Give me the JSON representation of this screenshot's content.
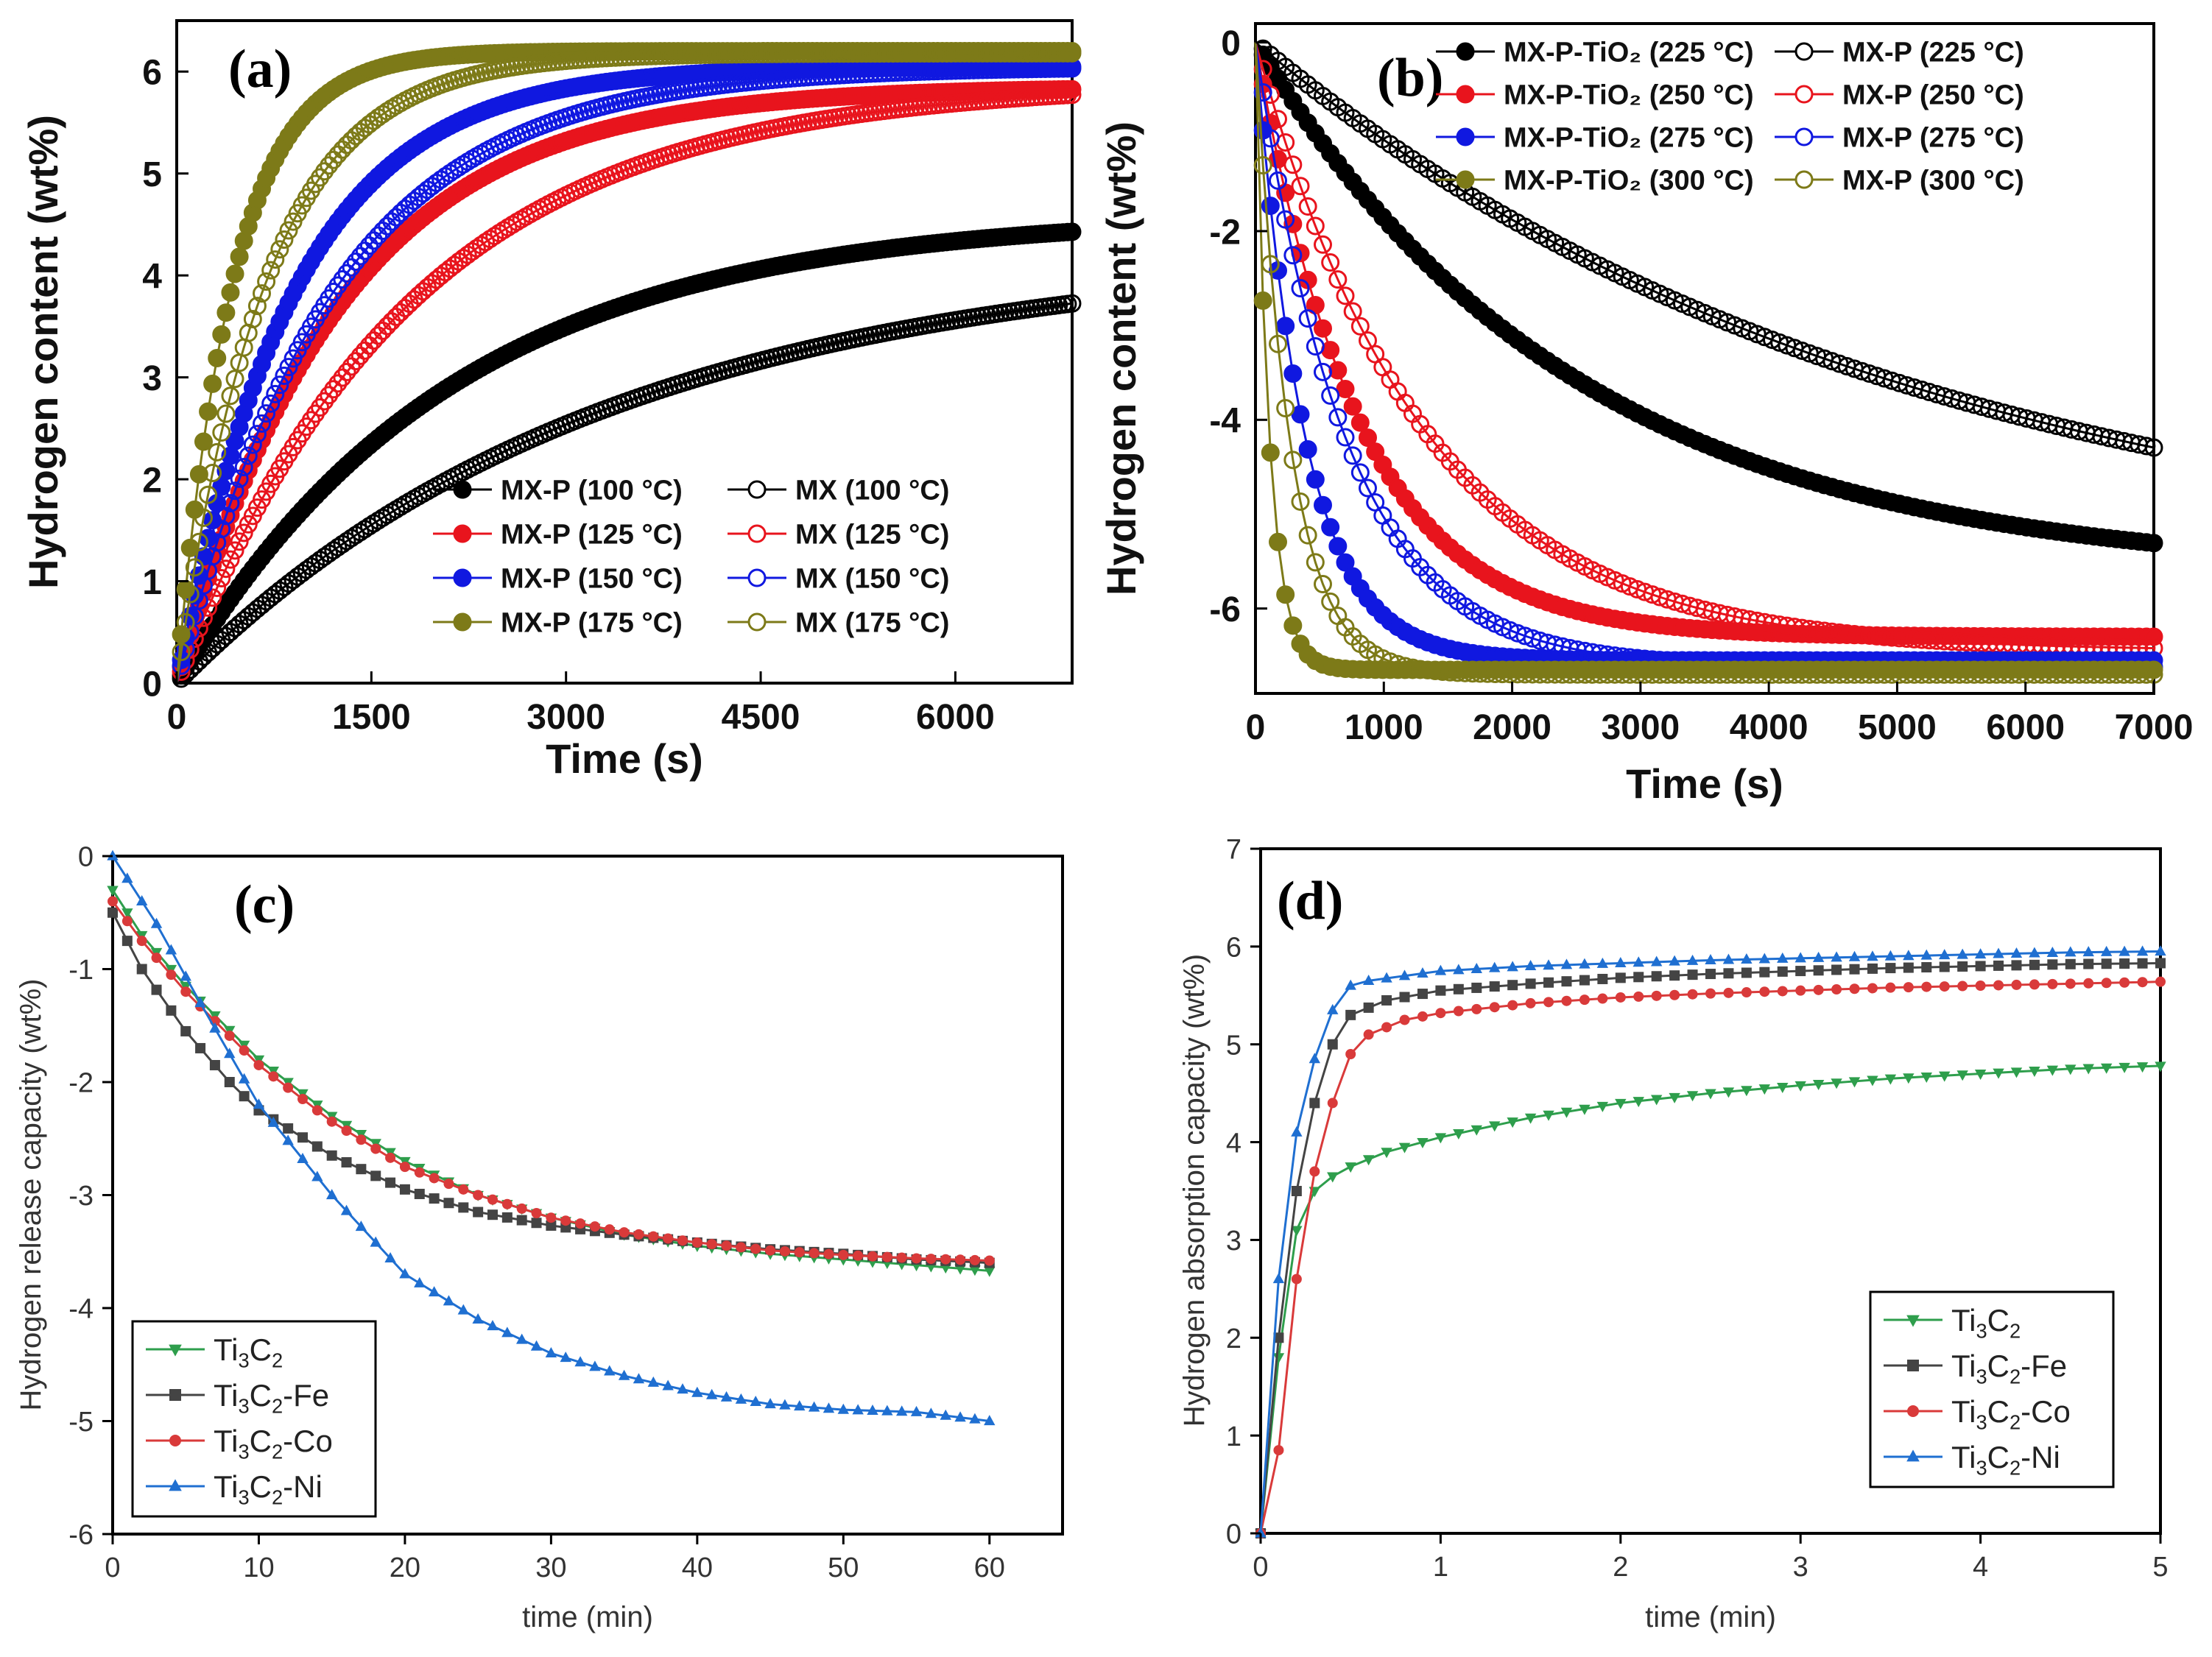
{
  "chart_data": [
    {
      "id": "a",
      "type": "scatter",
      "panel_label": "(a)",
      "xlabel": "Time (s)",
      "ylabel": "Hydrogen content (wt%)",
      "xlim": [
        0,
        6900
      ],
      "ylim": [
        0,
        6.5
      ],
      "xticks": [
        0,
        1500,
        3000,
        4500,
        6000
      ],
      "xtick_labels": [
        "0",
        "1500",
        "3000",
        "4500",
        "6000"
      ],
      "yticks": [
        0,
        1,
        2,
        3,
        4,
        5,
        6
      ],
      "ytick_labels": [
        "0",
        "1",
        "2",
        "3",
        "4",
        "5",
        "6"
      ],
      "legend_position": "lower-right",
      "series": [
        {
          "name": "MX-P (100 °C)",
          "label": "MX-P (100 °C)",
          "color": "#000000",
          "filled": true,
          "final": 4.6,
          "tau": 2100
        },
        {
          "name": "MX (100 °C)",
          "label": "MX (100 °C)",
          "color": "#000000",
          "filled": false,
          "final": 4.25,
          "tau": 3300
        },
        {
          "name": "MX-P (125 °C)",
          "label": "MX-P (125 °C)",
          "color": "#e8141d",
          "filled": true,
          "final": 5.85,
          "tau": 1250
        },
        {
          "name": "MX (125 °C)",
          "label": "MX (125 °C)",
          "color": "#e8141d",
          "filled": false,
          "final": 5.9,
          "tau": 1800
        },
        {
          "name": "MX-P (150 °C)",
          "label": "MX-P (150 °C)",
          "color": "#1018e0",
          "filled": true,
          "final": 6.05,
          "tau": 900
        },
        {
          "name": "MX (150 °C)",
          "label": "MX (150 °C)",
          "color": "#1018e0",
          "filled": false,
          "final": 6.05,
          "tau": 1200
        },
        {
          "name": "MX-P (175 °C)",
          "label": "MX-P (175 °C)",
          "color": "#7d7a18",
          "filled": true,
          "final": 6.2,
          "tau": 430
        },
        {
          "name": "MX (175 °C)",
          "label": "MX (175 °C)",
          "color": "#7d7a18",
          "filled": false,
          "final": 6.18,
          "tau": 680
        }
      ]
    },
    {
      "id": "b",
      "type": "scatter",
      "panel_label": "(b)",
      "xlabel": "Time (s)",
      "ylabel": "Hydrogen content (wt%)",
      "xlim": [
        0,
        7000
      ],
      "ylim": [
        -6.9,
        0.2
      ],
      "xticks": [
        0,
        1000,
        2000,
        3000,
        4000,
        5000,
        6000,
        7000
      ],
      "xtick_labels": [
        "0",
        "1000",
        "2000",
        "3000",
        "4000",
        "5000",
        "6000",
        "7000"
      ],
      "yticks": [
        0,
        -2,
        -4,
        -6
      ],
      "ytick_labels": [
        "0",
        "-2",
        "-4",
        "-6"
      ],
      "legend_position": "top-right",
      "series": [
        {
          "name": "MX-P-TiO2 (225 °C)",
          "label": "MX-P-TiO₂ (225 °C)",
          "color": "#000000",
          "filled": true,
          "final": -5.65,
          "tau": 2500
        },
        {
          "name": "MX-P (225 °C)",
          "label": "MX-P (225 °C)",
          "color": "#000000",
          "filled": false,
          "final": -5.7,
          "tau": 5000
        },
        {
          "name": "MX-P-TiO2 (250 °C)",
          "label": "MX-P-TiO₂ (250 °C)",
          "color": "#e8141d",
          "filled": true,
          "final": -6.3,
          "tau": 800
        },
        {
          "name": "MX-P (250 °C)",
          "label": "MX-P (250 °C)",
          "color": "#e8141d",
          "filled": false,
          "final": -6.45,
          "tau": 1300
        },
        {
          "name": "MX-P-TiO2 (275 °C)",
          "label": "MX-P-TiO₂ (275 °C)",
          "color": "#1018e0",
          "filled": true,
          "final": -6.55,
          "tau": 380
        },
        {
          "name": "MX-P (275 °C)",
          "label": "MX-P (275 °C)",
          "color": "#1018e0",
          "filled": false,
          "final": -6.62,
          "tau": 700
        },
        {
          "name": "MX-P-TiO2 (300 °C)",
          "label": "MX-P-TiO₂ (300 °C)",
          "color": "#7d7a18",
          "filled": true,
          "final": -6.65,
          "tau": 110
        },
        {
          "name": "MX-P (300 °C)",
          "label": "MX-P (300 °C)",
          "color": "#7d7a18",
          "filled": false,
          "final": -6.7,
          "tau": 270
        }
      ]
    },
    {
      "id": "c",
      "type": "line",
      "panel_label": "(c)",
      "xlabel": "time (min)",
      "ylabel": "Hydrogen release capacity (wt%)",
      "xlim": [
        0,
        65
      ],
      "ylim": [
        -6,
        0
      ],
      "xticks": [
        0,
        10,
        20,
        30,
        40,
        50,
        60
      ],
      "xtick_labels": [
        "0",
        "10",
        "20",
        "30",
        "40",
        "50",
        "60"
      ],
      "yticks": [
        0,
        -1,
        -2,
        -3,
        -4,
        -5,
        -6
      ],
      "ytick_labels": [
        "0",
        "-1",
        "-2",
        "-3",
        "-4",
        "-5",
        "-6"
      ],
      "legend_position": "lower-left",
      "legend": [
        {
          "base": "Ti",
          "sub1": "3",
          "mid": "C",
          "sub2": "2",
          "suffix": ""
        },
        {
          "base": "Ti",
          "sub1": "3",
          "mid": "C",
          "sub2": "2",
          "suffix": "-Fe"
        },
        {
          "base": "Ti",
          "sub1": "3",
          "mid": "C",
          "sub2": "2",
          "suffix": "-Co"
        },
        {
          "base": "Ti",
          "sub1": "3",
          "mid": "C",
          "sub2": "2",
          "suffix": "-Ni"
        }
      ],
      "series": [
        {
          "name": "Ti3C2",
          "color": "#2e9e4c",
          "marker": "tri-down",
          "x": [
            0,
            2,
            5,
            10,
            15,
            20,
            25,
            30,
            35,
            40,
            45,
            50,
            55,
            60
          ],
          "y": [
            -0.3,
            -0.7,
            -1.15,
            -1.8,
            -2.3,
            -2.7,
            -3.0,
            -3.2,
            -3.35,
            -3.45,
            -3.52,
            -3.57,
            -3.62,
            -3.67
          ]
        },
        {
          "name": "Ti3C2-Fe",
          "color": "#444444",
          "marker": "square",
          "x": [
            0,
            2,
            5,
            8,
            10,
            15,
            20,
            25,
            30,
            35,
            40,
            45,
            50,
            55,
            60
          ],
          "y": [
            -0.5,
            -1.0,
            -1.55,
            -2.0,
            -2.25,
            -2.65,
            -2.95,
            -3.15,
            -3.27,
            -3.35,
            -3.42,
            -3.48,
            -3.52,
            -3.57,
            -3.6
          ]
        },
        {
          "name": "Ti3C2-Co",
          "color": "#d93a3a",
          "marker": "circle",
          "x": [
            0,
            2,
            5,
            10,
            15,
            20,
            25,
            30,
            35,
            40,
            45,
            50,
            55,
            60
          ],
          "y": [
            -0.4,
            -0.75,
            -1.2,
            -1.85,
            -2.35,
            -2.75,
            -3.0,
            -3.2,
            -3.33,
            -3.42,
            -3.49,
            -3.53,
            -3.56,
            -3.58
          ]
        },
        {
          "name": "Ti3C2-Ni",
          "color": "#1f6fd1",
          "marker": "triangle",
          "x": [
            0,
            3,
            6,
            10,
            15,
            20,
            25,
            30,
            35,
            40,
            45,
            50,
            55,
            60
          ],
          "y": [
            0.0,
            -0.6,
            -1.3,
            -2.2,
            -3.0,
            -3.7,
            -4.1,
            -4.4,
            -4.6,
            -4.75,
            -4.85,
            -4.9,
            -4.92,
            -5.0
          ]
        }
      ]
    },
    {
      "id": "d",
      "type": "line",
      "panel_label": "(d)",
      "xlabel": "time (min)",
      "ylabel": "Hydrogen absorption capacity (wt%)",
      "xlim": [
        0,
        5
      ],
      "ylim": [
        0,
        7
      ],
      "xticks": [
        0,
        1,
        2,
        3,
        4,
        5
      ],
      "xtick_labels": [
        "0",
        "1",
        "2",
        "3",
        "4",
        "5"
      ],
      "yticks": [
        0,
        1,
        2,
        3,
        4,
        5,
        6,
        7
      ],
      "ytick_labels": [
        "0",
        "1",
        "2",
        "3",
        "4",
        "5",
        "6",
        "7"
      ],
      "legend_position": "lower-right",
      "legend": [
        {
          "base": "Ti",
          "sub1": "3",
          "mid": "C",
          "sub2": "2",
          "suffix": ""
        },
        {
          "base": "Ti",
          "sub1": "3",
          "mid": "C",
          "sub2": "2",
          "suffix": "-Fe"
        },
        {
          "base": "Ti",
          "sub1": "3",
          "mid": "C",
          "sub2": "2",
          "suffix": "-Co"
        },
        {
          "base": "Ti",
          "sub1": "3",
          "mid": "C",
          "sub2": "2",
          "suffix": "-Ni"
        }
      ],
      "series": [
        {
          "name": "Ti3C2",
          "color": "#2e9e4c",
          "marker": "tri-down",
          "x": [
            0,
            0.05,
            0.1,
            0.15,
            0.2,
            0.3,
            0.4,
            0.5,
            0.7,
            1.0,
            1.5,
            2.0,
            2.5,
            3.0,
            3.5,
            4.0,
            4.5,
            5.0
          ],
          "y": [
            0,
            1.0,
            1.8,
            2.6,
            3.1,
            3.5,
            3.65,
            3.75,
            3.9,
            4.05,
            4.25,
            4.4,
            4.5,
            4.58,
            4.65,
            4.7,
            4.75,
            4.78
          ]
        },
        {
          "name": "Ti3C2-Fe",
          "color": "#444444",
          "marker": "square",
          "x": [
            0,
            0.05,
            0.1,
            0.15,
            0.2,
            0.3,
            0.4,
            0.5,
            0.7,
            1.0,
            1.5,
            2.0,
            2.5,
            3.0,
            3.5,
            4.0,
            4.5,
            5.0
          ],
          "y": [
            0,
            1.0,
            2.0,
            2.9,
            3.5,
            4.4,
            5.0,
            5.3,
            5.45,
            5.55,
            5.62,
            5.68,
            5.72,
            5.75,
            5.78,
            5.8,
            5.82,
            5.83
          ]
        },
        {
          "name": "Ti3C2-Co",
          "color": "#d93a3a",
          "marker": "circle",
          "x": [
            0,
            0.05,
            0.1,
            0.15,
            0.2,
            0.3,
            0.4,
            0.5,
            0.6,
            0.8,
            1.0,
            1.5,
            2.0,
            2.5,
            3.0,
            3.5,
            4.0,
            4.5,
            5.0
          ],
          "y": [
            0,
            0.3,
            0.85,
            1.7,
            2.6,
            3.7,
            4.4,
            4.9,
            5.1,
            5.25,
            5.32,
            5.42,
            5.48,
            5.52,
            5.55,
            5.58,
            5.6,
            5.62,
            5.64
          ]
        },
        {
          "name": "Ti3C2-Ni",
          "color": "#1f6fd1",
          "marker": "triangle",
          "x": [
            0,
            0.05,
            0.1,
            0.15,
            0.2,
            0.3,
            0.4,
            0.5,
            0.6,
            0.8,
            1.0,
            1.5,
            2.0,
            2.5,
            3.0,
            3.5,
            4.0,
            4.5,
            5.0
          ],
          "y": [
            0,
            1.0,
            2.6,
            3.5,
            4.1,
            4.85,
            5.35,
            5.6,
            5.65,
            5.7,
            5.75,
            5.8,
            5.83,
            5.86,
            5.88,
            5.9,
            5.92,
            5.94,
            5.95
          ]
        }
      ]
    }
  ]
}
